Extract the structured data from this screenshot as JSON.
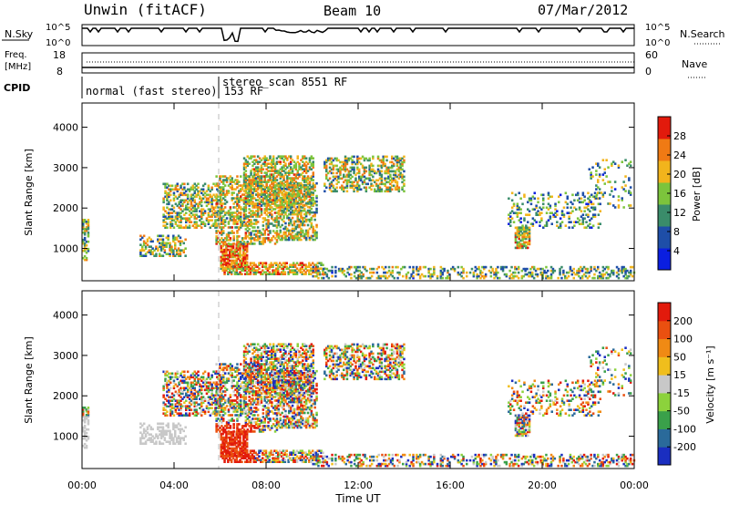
{
  "header": {
    "title": "Unwin (fitACF)",
    "beam": "Beam 10",
    "date": "07/Mar/2012"
  },
  "nsky_panel": {
    "left_label": "N.Sky",
    "right_label": "N.Search",
    "left_ticks": [
      "10^5",
      "10^0"
    ],
    "right_ticks": [
      "10^5",
      "10^0"
    ]
  },
  "freq_panel": {
    "left_label_1": "Freq.",
    "left_label_2": "[MHz]",
    "right_label": "Nave",
    "left_ticks": [
      "18",
      "8"
    ],
    "right_ticks": [
      "60",
      "0"
    ]
  },
  "cpid": {
    "label": "CPID",
    "mode_1": "normal (fast stereo) 153 RF",
    "mode_2": "stereo_scan 8551 RF"
  },
  "chart_data": [
    {
      "type": "heatmap",
      "name": "power",
      "ylabel": "Slant Range [km]",
      "ylim": [
        200,
        4600
      ],
      "xlim": [
        0,
        24
      ],
      "y_ticks": [
        1000,
        2000,
        3000,
        4000
      ],
      "colorbar_label": "Power [dB]",
      "colorbar_ticks": [
        "4",
        "8",
        "12",
        "16",
        "20",
        "24",
        "28"
      ],
      "colors": [
        "#0a1ee0",
        "#1e4ea8",
        "#3a8c6a",
        "#7cc43c",
        "#f2b41c",
        "#f07a14",
        "#e21a0c"
      ]
    },
    {
      "type": "heatmap",
      "name": "velocity",
      "ylabel": "Slant Range [km]",
      "ylim": [
        200,
        4600
      ],
      "xlim": [
        0,
        24
      ],
      "y_ticks": [
        1000,
        2000,
        3000,
        4000
      ],
      "x_tick_labels": [
        "00:00",
        "04:00",
        "08:00",
        "12:00",
        "16:00",
        "20:00",
        "00:00"
      ],
      "xlabel": "Time UT",
      "colorbar_label": "Velocity [m s⁻¹]",
      "colorbar_ticks": [
        "200",
        "100",
        "50",
        "15",
        "-15",
        "-50",
        "-100",
        "-200"
      ],
      "colors": [
        "#1a2ec0",
        "#2a6a9a",
        "#3aa04a",
        "#8cd23c",
        "#c8c8c8",
        "#f0be1c",
        "#f08a14",
        "#ea5010",
        "#e21a0c"
      ]
    }
  ]
}
